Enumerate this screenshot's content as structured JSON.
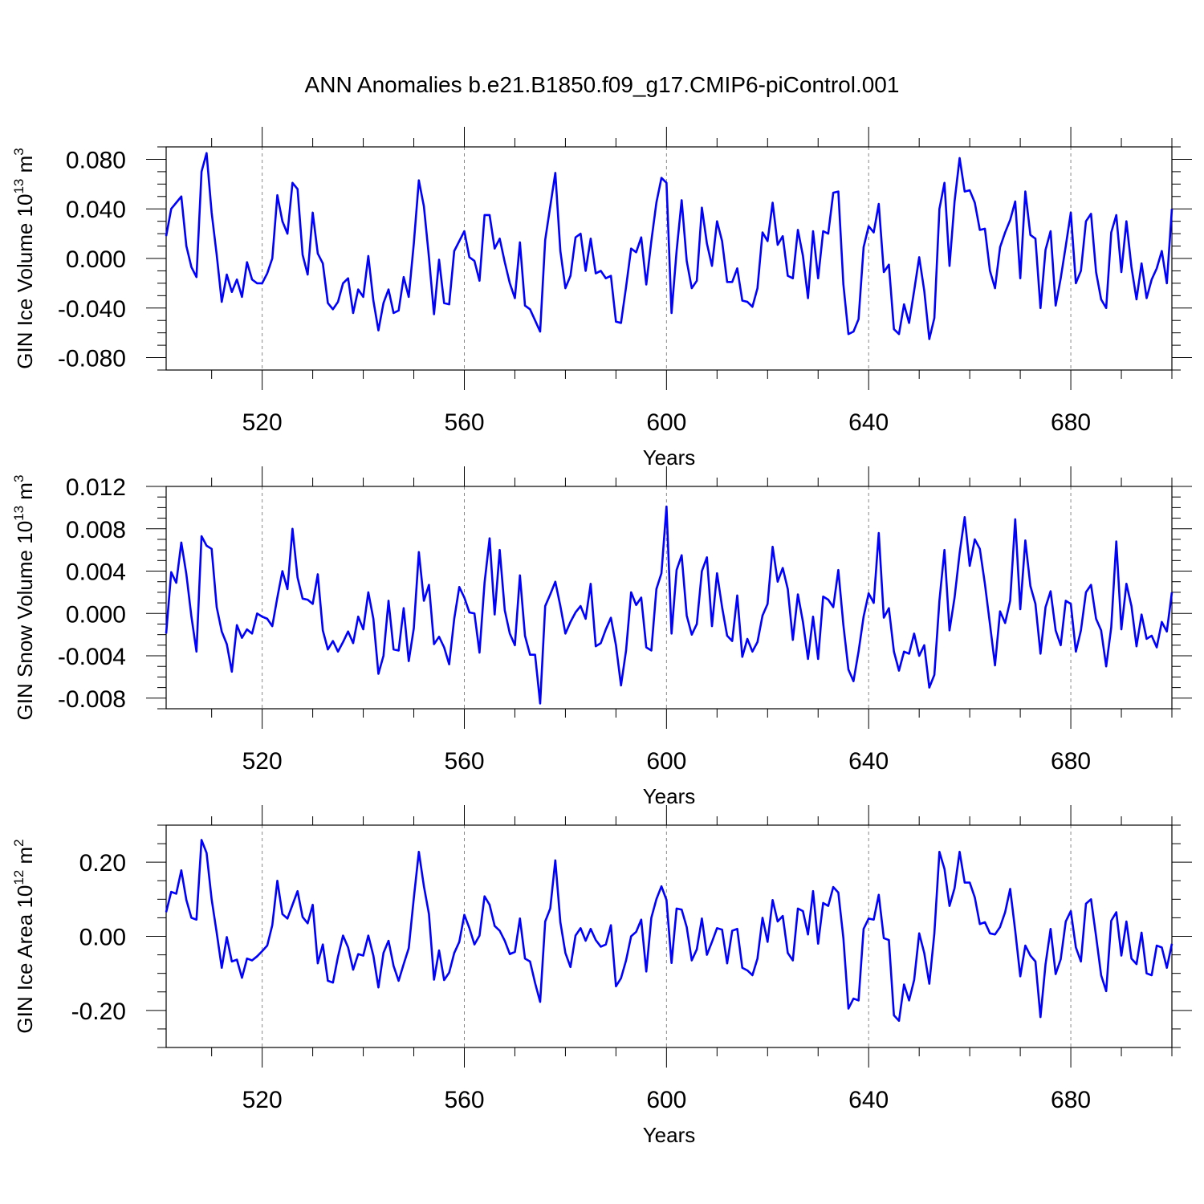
{
  "title": "ANN Anomalies b.e21.B1850.f09_g17.CMIP6-piControl.001",
  "line_color": "#0000ff",
  "chart_data": [
    {
      "type": "line",
      "title": "ANN Anomalies b.e21.B1850.f09_g17.CMIP6-piControl.001",
      "xlabel": "Years",
      "ylabel": {
        "base": "GIN Ice Volume 10",
        "exp": "13",
        "unit": " m",
        "unit_exp": "3"
      },
      "xlim": [
        501,
        700
      ],
      "ylim": [
        -0.09,
        0.09
      ],
      "xticks": [
        520,
        560,
        600,
        640,
        680
      ],
      "xtick_labels": [
        "520",
        "560",
        "600",
        "640",
        "680"
      ],
      "yticks": [
        -0.08,
        -0.04,
        0.0,
        0.04,
        0.08
      ],
      "ytick_labels": [
        "-0.080",
        "-0.040",
        "0.000",
        "0.040",
        "0.080"
      ],
      "grid": "vertical dashed at x ticks",
      "series": [
        {
          "x_start": 501,
          "values": [
            0.018,
            0.04,
            0.045,
            0.05,
            0.01,
            -0.007,
            -0.015,
            0.07,
            0.085,
            0.037,
            0.003,
            -0.035,
            -0.013,
            -0.027,
            -0.017,
            -0.031,
            -0.003,
            -0.017,
            -0.02,
            -0.02,
            -0.012,
            0.0,
            0.051,
            0.03,
            0.02,
            0.061,
            0.056,
            0.003,
            -0.013,
            0.037,
            0.004,
            -0.004,
            -0.036,
            -0.041,
            -0.035,
            -0.02,
            -0.016,
            -0.044,
            -0.025,
            -0.031,
            0.002,
            -0.034,
            -0.058,
            -0.036,
            -0.025,
            -0.044,
            -0.042,
            -0.015,
            -0.031,
            0.012,
            0.063,
            0.042,
            0.001,
            -0.045,
            -0.001,
            -0.036,
            -0.037,
            0.006,
            0.014,
            0.022,
            0.001,
            -0.002,
            -0.018,
            0.035,
            0.035,
            0.008,
            0.016,
            -0.003,
            -0.02,
            -0.032,
            0.013,
            -0.038,
            -0.041,
            -0.05,
            -0.059,
            0.015,
            0.042,
            0.069,
            0.006,
            -0.024,
            -0.014,
            0.017,
            0.02,
            -0.01,
            0.016,
            -0.012,
            -0.01,
            -0.016,
            -0.014,
            -0.051,
            -0.052,
            -0.023,
            0.008,
            0.005,
            0.017,
            -0.021,
            0.014,
            0.045,
            0.065,
            0.061,
            -0.044,
            0.006,
            0.047,
            -0.002,
            -0.024,
            -0.018,
            0.041,
            0.012,
            -0.006,
            0.03,
            0.014,
            -0.019,
            -0.019,
            -0.008,
            -0.034,
            -0.035,
            -0.039,
            -0.024,
            0.021,
            0.014,
            0.045,
            0.011,
            0.018,
            -0.014,
            -0.016,
            0.023,
            0.002,
            -0.032,
            0.022,
            -0.016,
            0.022,
            0.02,
            0.053,
            0.054,
            -0.021,
            -0.061,
            -0.059,
            -0.049,
            0.009,
            0.026,
            0.021,
            0.044,
            -0.011,
            -0.005,
            -0.057,
            -0.061,
            -0.037,
            -0.052,
            -0.026,
            0.001,
            -0.026,
            -0.065,
            -0.048,
            0.04,
            0.061,
            -0.006,
            0.046,
            0.081,
            0.054,
            0.055,
            0.045,
            0.023,
            0.024,
            -0.01,
            -0.024,
            0.009,
            0.021,
            0.031,
            0.046,
            -0.016,
            0.054,
            0.019,
            0.016,
            -0.04,
            0.007,
            0.022,
            -0.038,
            -0.016,
            0.01,
            0.037,
            -0.02,
            -0.01,
            0.03,
            0.036,
            -0.011,
            -0.033,
            -0.04,
            0.021,
            0.035,
            -0.011,
            0.03,
            -0.007,
            -0.033,
            -0.004,
            -0.032,
            -0.017,
            -0.008,
            0.006,
            -0.02,
            0.04
          ]
        }
      ]
    },
    {
      "type": "line",
      "xlabel": "Years",
      "ylabel": {
        "base": "GIN Snow Volume 10",
        "exp": "13",
        "unit": " m",
        "unit_exp": "3"
      },
      "xlim": [
        501,
        700
      ],
      "ylim": [
        -0.009,
        0.012
      ],
      "xticks": [
        520,
        560,
        600,
        640,
        680
      ],
      "xtick_labels": [
        "520",
        "560",
        "600",
        "640",
        "680"
      ],
      "yticks": [
        -0.008,
        -0.004,
        0.0,
        0.004,
        0.008,
        0.012
      ],
      "ytick_labels": [
        "-0.008",
        "-0.004",
        "0.000",
        "0.004",
        "0.008",
        "0.012"
      ],
      "grid": "vertical dashed at x ticks",
      "series": [
        {
          "x_start": 501,
          "values": [
            -0.0019,
            0.0039,
            0.0029,
            0.0067,
            0.0037,
            -0.0003,
            -0.0036,
            0.0073,
            0.0064,
            0.0061,
            0.0006,
            -0.0017,
            -0.0029,
            -0.0055,
            -0.0011,
            -0.0023,
            -0.0015,
            -0.0019,
            0.0,
            -0.0003,
            -0.0005,
            -0.0012,
            0.0015,
            0.004,
            0.0023,
            0.008,
            0.0034,
            0.0014,
            0.0013,
            0.0009,
            0.0037,
            -0.0016,
            -0.0034,
            -0.0026,
            -0.0036,
            -0.0027,
            -0.0017,
            -0.0028,
            -0.0003,
            -0.0015,
            0.002,
            -0.0005,
            -0.0057,
            -0.004,
            0.0012,
            -0.0034,
            -0.0035,
            0.0005,
            -0.0045,
            -0.0014,
            0.0058,
            0.0012,
            0.0027,
            -0.0029,
            -0.0022,
            -0.0032,
            -0.0048,
            -0.0005,
            0.0025,
            0.0015,
            0.0001,
            0.0,
            -0.0037,
            0.0029,
            0.0071,
            -0.0001,
            0.006,
            0.0003,
            -0.0019,
            -0.003,
            0.0036,
            -0.0021,
            -0.0039,
            -0.0039,
            -0.0085,
            0.0007,
            0.0018,
            0.003,
            0.0007,
            -0.0019,
            -0.0008,
            0.0001,
            0.0007,
            -0.0005,
            0.0028,
            -0.0031,
            -0.0028,
            -0.0015,
            -0.0004,
            -0.003,
            -0.0068,
            -0.0035,
            0.002,
            0.0008,
            0.0015,
            -0.0032,
            -0.0035,
            0.0023,
            0.0038,
            0.0101,
            -0.0019,
            0.0041,
            0.0055,
            -0.0002,
            -0.002,
            -0.001,
            0.004,
            0.0053,
            -0.0012,
            0.0038,
            0.0006,
            -0.0021,
            -0.0026,
            0.0017,
            -0.0041,
            -0.0024,
            -0.0036,
            -0.0027,
            -0.0002,
            0.0009,
            0.0063,
            0.003,
            0.0043,
            0.0023,
            -0.0025,
            0.0018,
            -0.0008,
            -0.0043,
            -0.0003,
            -0.0043,
            0.0016,
            0.0013,
            0.0006,
            0.0041,
            -0.0011,
            -0.0053,
            -0.0064,
            -0.0036,
            -0.0003,
            0.0019,
            0.001,
            0.0076,
            -0.0004,
            0.0005,
            -0.0036,
            -0.0054,
            -0.0036,
            -0.0038,
            -0.0019,
            -0.004,
            -0.003,
            -0.007,
            -0.0058,
            0.0012,
            0.006,
            -0.0016,
            0.0015,
            0.0057,
            0.0091,
            0.0045,
            0.007,
            0.0061,
            0.0028,
            -0.001,
            -0.0049,
            0.0002,
            -0.0009,
            0.0012,
            0.0089,
            0.0004,
            0.0069,
            0.0026,
            0.0009,
            -0.0038,
            0.0006,
            0.0021,
            -0.0016,
            -0.003,
            0.0012,
            0.0009,
            -0.0036,
            -0.0016,
            0.002,
            0.0027,
            -0.0005,
            -0.0016,
            -0.005,
            -0.0013,
            0.0068,
            -0.0015,
            0.0028,
            0.0007,
            -0.0031,
            -0.0001,
            -0.0024,
            -0.0021,
            -0.0032,
            -0.0008,
            -0.0017,
            0.002
          ]
        }
      ]
    },
    {
      "type": "line",
      "xlabel": "Years",
      "ylabel": {
        "base": "GIN Ice Area 10",
        "exp": "12",
        "unit": " m",
        "unit_exp": "2"
      },
      "xlim": [
        501,
        700
      ],
      "ylim": [
        -0.3,
        0.3
      ],
      "xticks": [
        520,
        560,
        600,
        640,
        680
      ],
      "xtick_labels": [
        "520",
        "560",
        "600",
        "640",
        "680"
      ],
      "yticks": [
        -0.2,
        0.0,
        0.2
      ],
      "ytick_labels": [
        "-0.20",
        "0.00",
        "0.20"
      ],
      "grid": "vertical dashed at x ticks",
      "series": [
        {
          "x_start": 501,
          "values": [
            0.065,
            0.12,
            0.115,
            0.178,
            0.098,
            0.05,
            0.045,
            0.26,
            0.225,
            0.1,
            0.01,
            -0.085,
            -0.002,
            -0.068,
            -0.063,
            -0.112,
            -0.06,
            -0.065,
            -0.054,
            -0.04,
            -0.025,
            0.03,
            0.15,
            0.06,
            0.048,
            0.085,
            0.122,
            0.052,
            0.035,
            0.085,
            -0.073,
            -0.022,
            -0.12,
            -0.125,
            -0.055,
            0.002,
            -0.03,
            -0.09,
            -0.048,
            -0.052,
            0.002,
            -0.052,
            -0.138,
            -0.045,
            -0.012,
            -0.08,
            -0.12,
            -0.075,
            -0.032,
            0.103,
            0.228,
            0.135,
            0.06,
            -0.117,
            -0.038,
            -0.118,
            -0.098,
            -0.045,
            -0.015,
            0.058,
            0.022,
            -0.022,
            0.002,
            0.108,
            0.085,
            0.028,
            0.015,
            -0.012,
            -0.048,
            -0.042,
            0.048,
            -0.06,
            -0.068,
            -0.126,
            -0.177,
            0.04,
            0.075,
            0.205,
            0.038,
            -0.045,
            -0.083,
            0.002,
            0.022,
            -0.012,
            0.02,
            -0.01,
            -0.028,
            -0.022,
            0.03,
            -0.135,
            -0.113,
            -0.065,
            0.0,
            0.012,
            0.045,
            -0.095,
            0.05,
            0.1,
            0.135,
            0.098,
            -0.072,
            0.075,
            0.072,
            0.025,
            -0.065,
            -0.035,
            0.048,
            -0.05,
            -0.015,
            0.022,
            0.018,
            -0.073,
            0.015,
            0.02,
            -0.085,
            -0.092,
            -0.105,
            -0.06,
            0.05,
            -0.015,
            0.098,
            0.04,
            0.055,
            -0.045,
            -0.065,
            0.075,
            0.068,
            0.005,
            0.122,
            -0.02,
            0.09,
            0.082,
            0.133,
            0.118,
            -0.005,
            -0.195,
            -0.168,
            -0.173,
            0.02,
            0.048,
            0.045,
            0.112,
            -0.005,
            -0.01,
            -0.213,
            -0.228,
            -0.13,
            -0.173,
            -0.118,
            0.008,
            -0.045,
            -0.128,
            0.008,
            0.228,
            0.182,
            0.082,
            0.13,
            0.228,
            0.145,
            0.145,
            0.105,
            0.033,
            0.038,
            0.008,
            0.005,
            0.025,
            0.065,
            0.128,
            0.015,
            -0.108,
            -0.025,
            -0.052,
            -0.068,
            -0.218,
            -0.075,
            0.02,
            -0.102,
            -0.062,
            0.04,
            0.068,
            -0.03,
            -0.068,
            0.088,
            0.1,
            0.0,
            -0.105,
            -0.148,
            0.042,
            0.065,
            -0.052,
            0.04,
            -0.06,
            -0.075,
            0.01,
            -0.1,
            -0.105,
            -0.025,
            -0.03,
            -0.085,
            -0.02
          ]
        }
      ]
    }
  ]
}
